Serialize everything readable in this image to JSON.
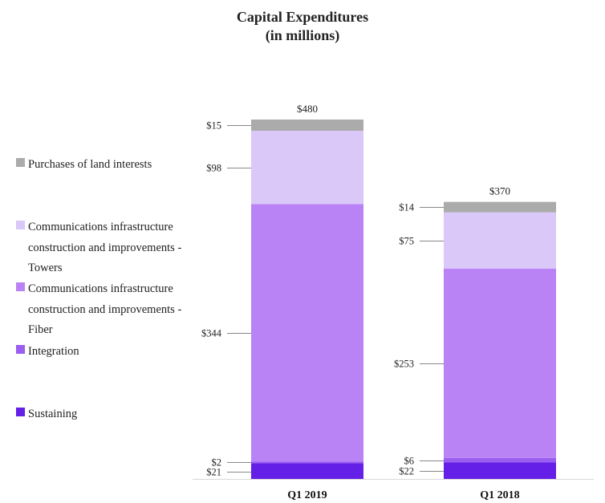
{
  "chart_data": {
    "type": "bar",
    "stacked": true,
    "title": "Capital Expenditures",
    "subtitle": "(in millions)",
    "categories": [
      "Q1 2019",
      "Q1 2018"
    ],
    "totals": [
      "$480",
      "$370"
    ],
    "ylim": [
      0,
      480
    ],
    "grid": false,
    "legend_position": "left",
    "series": [
      {
        "name": "Sustaining",
        "color": "#6420e6",
        "values": [
          21,
          22
        ],
        "labels": [
          "$21",
          "$22"
        ]
      },
      {
        "name": "Integration",
        "color": "#9a5ef0",
        "values": [
          2,
          6
        ],
        "labels": [
          "$2",
          "$6"
        ]
      },
      {
        "name": "Communications infrastructure construction and improvements - Fiber",
        "color": "#b983f5",
        "values": [
          344,
          253
        ],
        "labels": [
          "$344",
          "$253"
        ]
      },
      {
        "name": "Communications infrastructure construction and improvements - Towers",
        "color": "#d9c8f8",
        "values": [
          98,
          75
        ],
        "labels": [
          "$98",
          "$75"
        ]
      },
      {
        "name": "Purchases of land interests",
        "color": "#ababab",
        "values": [
          15,
          14
        ],
        "labels": [
          "$15",
          "$14"
        ]
      }
    ]
  }
}
